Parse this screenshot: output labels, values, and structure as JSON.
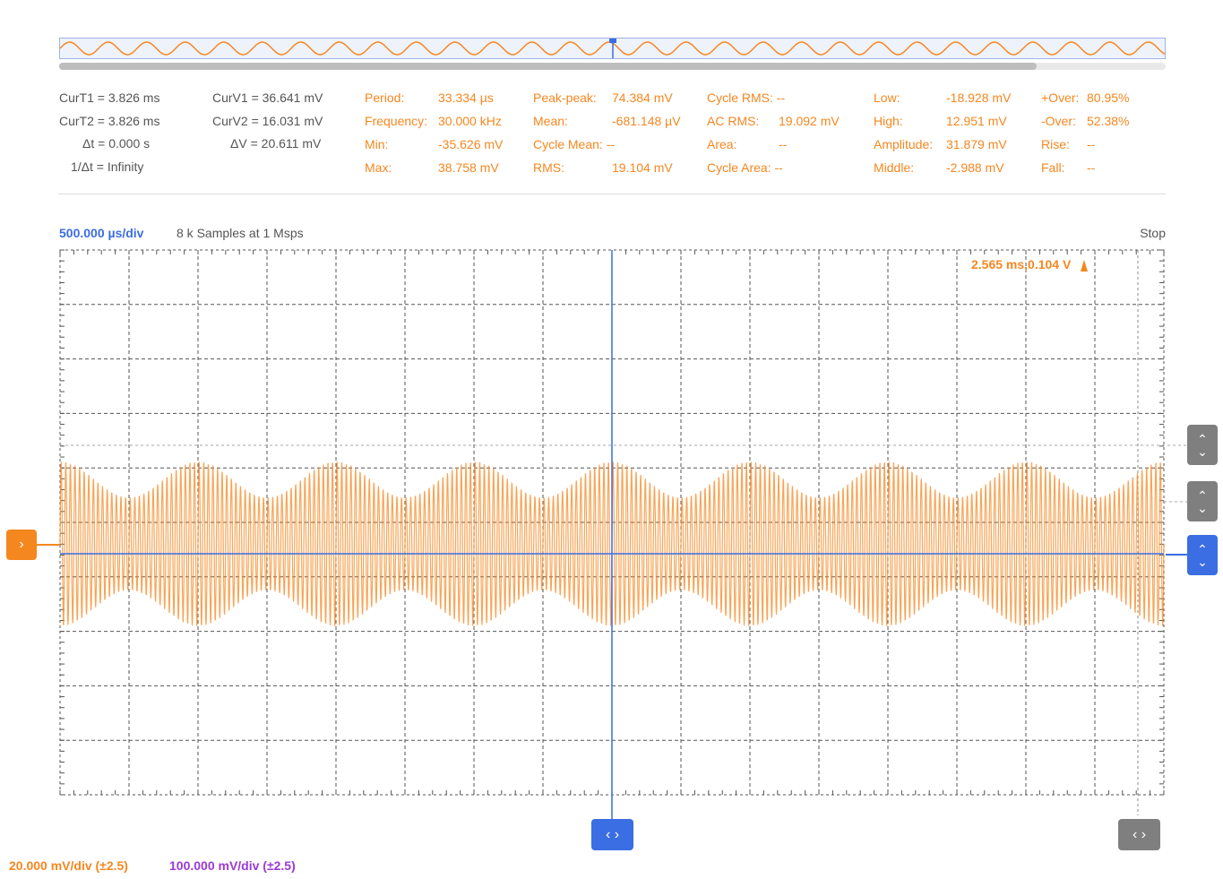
{
  "overview": {
    "wave_color": "#f5871f",
    "marker_color": "#3b6de3"
  },
  "cursors": {
    "t1": {
      "label": "CurT1 =",
      "value": "3.826 ms"
    },
    "t2": {
      "label": "CurT2 =",
      "value": "3.826 ms"
    },
    "dt": {
      "label": "Δt =",
      "value": "0.000 s"
    },
    "inv_dt": {
      "label": "1/Δt =",
      "value": "Infinity"
    },
    "v1": {
      "label": "CurV1 =",
      "value": "36.641 mV"
    },
    "v2": {
      "label": "CurV2 =",
      "value": "16.031 mV"
    },
    "dv": {
      "label": "ΔV =",
      "value": "20.611 mV"
    }
  },
  "measurements": {
    "period": {
      "label": "Period:",
      "value": "33.334 µs"
    },
    "frequency": {
      "label": "Frequency:",
      "value": "30.000 kHz"
    },
    "min": {
      "label": "Min:",
      "value": "-35.626 mV"
    },
    "max": {
      "label": "Max:",
      "value": "38.758 mV"
    },
    "peak_peak": {
      "label": "Peak-peak:",
      "value": "74.384 mV"
    },
    "mean": {
      "label": "Mean:",
      "value": "-681.148 µV"
    },
    "cycle_mean": {
      "label": "Cycle Mean:",
      "value": "--"
    },
    "rms": {
      "label": "RMS:",
      "value": "19.104 mV"
    },
    "cycle_rms": {
      "label": "Cycle RMS:",
      "value": "--"
    },
    "ac_rms": {
      "label": "AC RMS:",
      "value": "19.092 mV"
    },
    "area": {
      "label": "Area:",
      "value": "--"
    },
    "cycle_area": {
      "label": "Cycle Area:",
      "value": "--"
    },
    "low": {
      "label": "Low:",
      "value": "-18.928 mV"
    },
    "high": {
      "label": "High:",
      "value": "12.951 mV"
    },
    "amplitude": {
      "label": "Amplitude:",
      "value": "31.879 mV"
    },
    "middle": {
      "label": "Middle:",
      "value": "-2.988 mV"
    },
    "over_pos": {
      "label": "+Over:",
      "value": "80.95%"
    },
    "over_neg": {
      "label": "-Over:",
      "value": "52.38%"
    },
    "rise": {
      "label": "Rise:",
      "value": "--"
    },
    "fall": {
      "label": "Fall:",
      "value": "--"
    }
  },
  "acquisition": {
    "timebase": "500.000 µs/div",
    "samples": "8 k Samples at 1 Msps",
    "state": "Stop"
  },
  "cursor_readout": "2.565 ms,0.104 V",
  "channels": [
    {
      "scale": "20.000 mV/div (±2.5)",
      "color": "#f5871f"
    },
    {
      "scale": "100.000 mV/div (±2.5)",
      "color": "#9b3ad6"
    }
  ],
  "buttons": {
    "channel_marker": "›",
    "up": "⌃",
    "down": "⌄",
    "horizontal": "‹ ›"
  },
  "colors": {
    "waveform": "#f5871f",
    "trigger_cursor": "#3b6de3",
    "grid": "#555555"
  },
  "chart_data": {
    "type": "line",
    "title": "",
    "xlabel": "",
    "ylabel": "",
    "x_divisions": 16,
    "y_divisions": 10,
    "x_unit_per_div_us": 500,
    "y_unit_per_div_mv": 20,
    "carrier_frequency_khz": 30,
    "envelope_period_ms": 1.0,
    "envelope_max_mv": 38.758,
    "envelope_min_mv": 17,
    "grid": true
  }
}
